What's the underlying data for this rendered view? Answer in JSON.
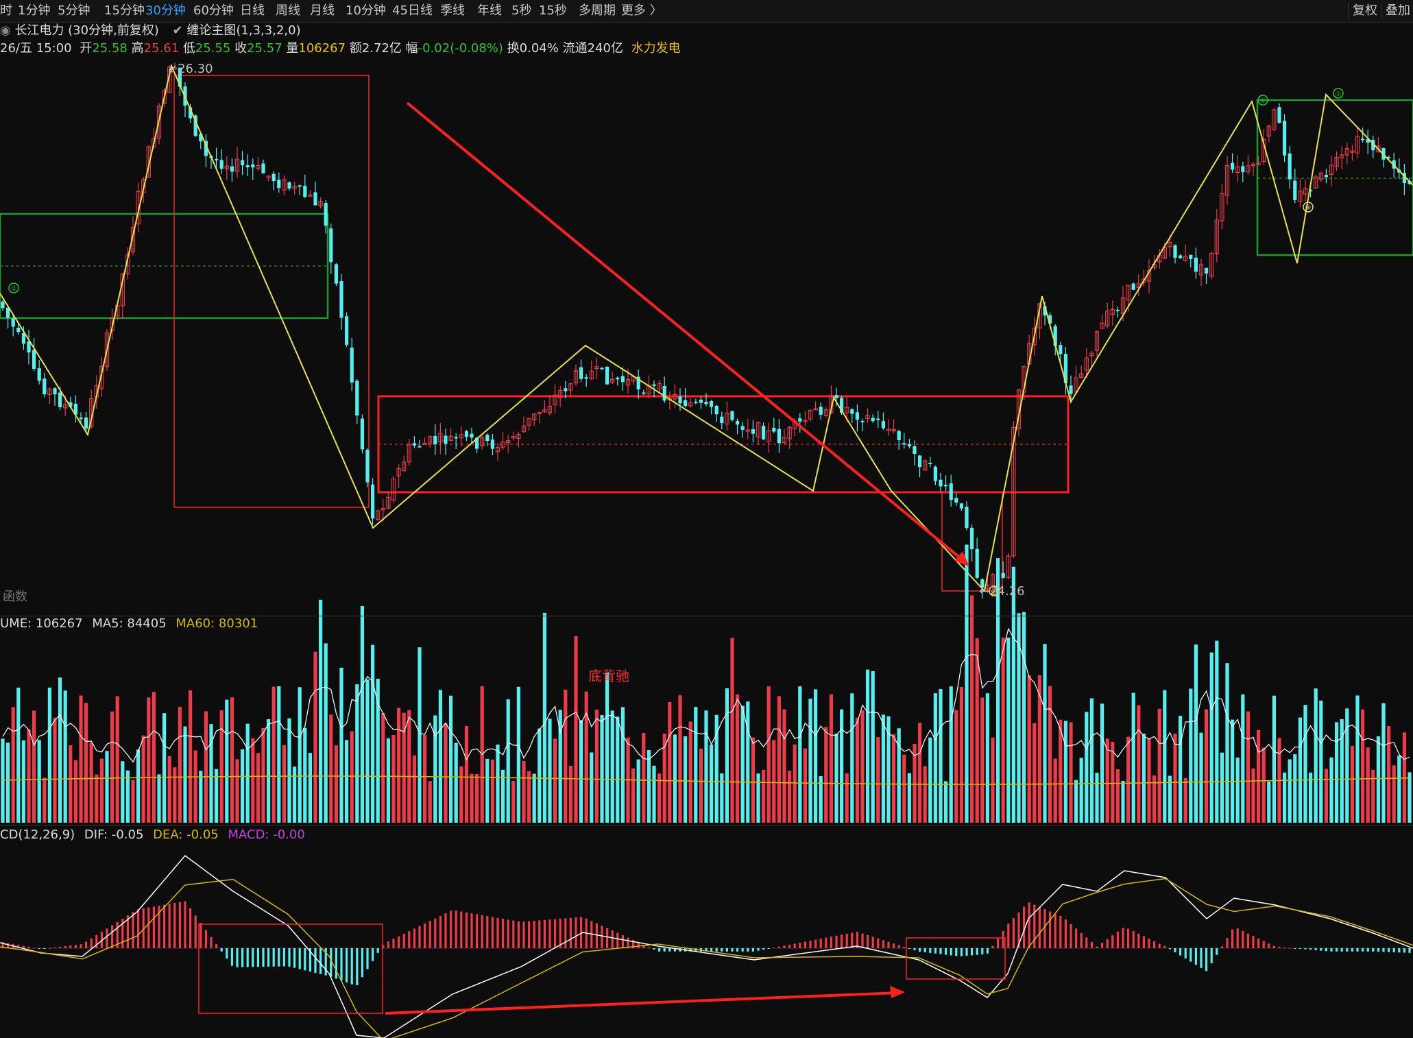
{
  "toolbar": {
    "periods": [
      "时",
      "1分钟",
      "5分钟",
      "15分钟",
      "30分钟",
      "60分钟",
      "日线",
      "周线",
      "月线",
      "10分钟",
      "45日线",
      "季线",
      "年线",
      "5秒",
      "15秒",
      "多周期",
      "更多 〉"
    ],
    "active_period": "30分钟",
    "right_buttons": [
      "复权",
      "叠加"
    ]
  },
  "stock": {
    "name": "长江电力 (30分钟,前复权)",
    "indicator": "缠论主图(1,3,3,2,0)",
    "date": "26/五 15:00",
    "open_label": "开",
    "open": "25.58",
    "high_label": "高",
    "high": "25.61",
    "low_label": "低",
    "low": "25.55",
    "close_label": "收",
    "close": "25.57",
    "volume_label": "量",
    "volume": "106267",
    "amount_label": "额",
    "amount": "2.72亿",
    "change_label": "幅",
    "change": "-0.02(-0.08%)",
    "turnover_label": "换",
    "turnover": "0.04%",
    "float_label": "流通",
    "float_cap": "240亿",
    "sector": "水力发电"
  },
  "main_chart": {
    "peak_label": "26.30",
    "trough_label": "24.26",
    "func_label": "函数",
    "pivot_markers": [
      "②",
      "①",
      "③",
      "①"
    ]
  },
  "volume_panel": {
    "header_name": "UME: 106267",
    "ma5": "MA5: 84405",
    "ma60": "MA60: 80301",
    "annotation": "底背驰"
  },
  "macd_panel": {
    "header_name": "CD(12,26,9)",
    "dif": "DIF: -0.05",
    "dea": "DEA: -0.05",
    "macd": "MACD: -0.00"
  },
  "colors": {
    "up": "#ee3b4a",
    "down": "#54f0f0",
    "zigzag": "#e6e24a",
    "zone_red": "#ff2020",
    "zone_green": "#1f9a2c",
    "ma60": "#d4b800",
    "ma5": "#ffffff"
  }
}
